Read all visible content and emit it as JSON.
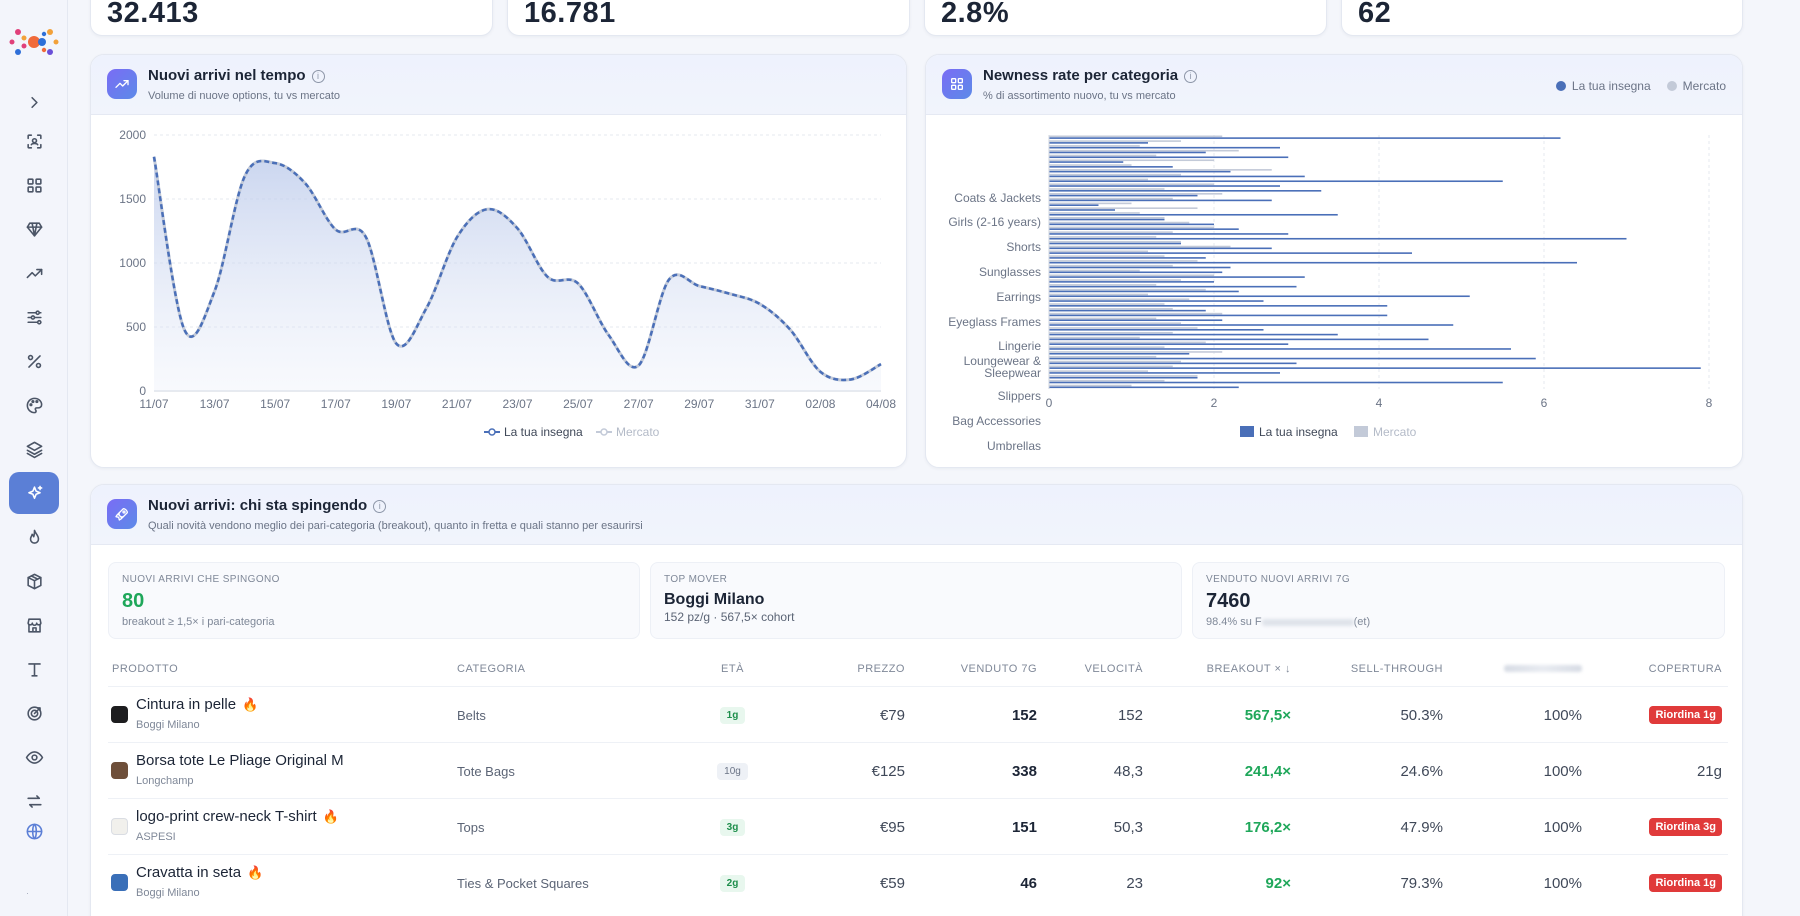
{
  "stats": [
    "32.413",
    "16.781",
    "2.8%",
    "62"
  ],
  "chart1": {
    "title": "Nuovi arrivi nel tempo",
    "subtitle": "Volume di nuove options, tu vs mercato",
    "legend": [
      "La tua insegna",
      "Mercato"
    ]
  },
  "chart2": {
    "title": "Newness rate per categoria",
    "subtitle": "% di assortimento nuovo, tu vs mercato",
    "legend": [
      "La tua insegna",
      "Mercato"
    ]
  },
  "chart_data": [
    {
      "type": "area",
      "title": "Nuovi arrivi nel tempo",
      "x": [
        "11/07",
        "12/07",
        "13/07",
        "14/07",
        "15/07",
        "16/07",
        "17/07",
        "18/07",
        "19/07",
        "20/07",
        "21/07",
        "22/07",
        "23/07",
        "24/07",
        "25/07",
        "26/07",
        "27/07",
        "28/07",
        "29/07",
        "30/07",
        "31/07",
        "01/08",
        "02/08",
        "03/08",
        "04/08"
      ],
      "x_tick_labels": [
        "11/07",
        "13/07",
        "15/07",
        "17/07",
        "19/07",
        "21/07",
        "23/07",
        "25/07",
        "27/07",
        "29/07",
        "31/07",
        "02/08",
        "04/08"
      ],
      "series": [
        {
          "name": "La tua insegna",
          "values": [
            1830,
            480,
            780,
            1680,
            1780,
            1620,
            1260,
            1200,
            370,
            650,
            1200,
            1420,
            1270,
            890,
            840,
            440,
            200,
            870,
            820,
            760,
            680,
            480,
            150,
            90,
            210
          ],
          "color": "#4a6fb8"
        },
        {
          "name": "Mercato",
          "values": [
            1830,
            480,
            780,
            1680,
            1780,
            1620,
            1260,
            1200,
            370,
            650,
            1200,
            1420,
            1270,
            890,
            840,
            440,
            200,
            870,
            820,
            760,
            680,
            480,
            150,
            90,
            210
          ],
          "color": "#c3cad8"
        }
      ],
      "ylim": [
        0,
        2000
      ],
      "y_ticks": [
        0,
        500,
        1000,
        1500,
        2000
      ],
      "grid": true,
      "legend": "bottom"
    },
    {
      "type": "bar",
      "orientation": "horizontal",
      "title": "Newness rate per categoria",
      "tick_labels": [
        "Coats & Jackets",
        "Girls (2-16 years)",
        "Shorts",
        "Sunglasses",
        "Earrings",
        "Eyeglass Frames",
        "Lingerie",
        "Loungewear & Sleepwear",
        "Slippers",
        "Bag Accessories",
        "Umbrellas"
      ],
      "series": [
        {
          "name": "La tua insegna",
          "values": [
            6.2,
            1.2,
            2.8,
            1.9,
            2.9,
            0.9,
            1.5,
            2.2,
            3.1,
            5.5,
            2.8,
            3.3,
            1.8,
            2.7,
            0.6,
            0.8,
            3.5,
            1.4,
            2.0,
            2.3,
            2.9,
            7.0,
            1.6,
            2.7,
            4.4,
            1.9,
            6.4,
            2.2,
            2.1,
            3.1,
            2.0,
            3.0,
            2.3,
            5.1,
            2.6,
            4.1,
            1.9,
            4.1,
            2.1,
            4.9,
            2.6,
            3.5,
            4.6,
            2.9,
            5.6,
            1.7,
            5.9,
            3.0,
            7.9,
            2.8,
            1.8,
            5.5,
            2.3
          ],
          "color": "#4a6fb8"
        },
        {
          "name": "Mercato",
          "values": [
            2.1,
            1.6,
            1.1,
            2.3,
            1.3,
            2.0,
            1.0,
            2.7,
            1.6,
            1.2,
            2.0,
            1.4,
            2.1,
            1.5,
            1.0,
            1.8,
            1.1,
            1.4,
            1.7,
            2.0,
            1.5,
            1.3,
            1.6,
            2.2,
            1.2,
            1.4,
            1.8,
            1.5,
            1.1,
            2.0,
            1.6,
            1.3,
            1.9,
            1.2,
            1.7,
            1.4,
            1.5,
            2.1,
            1.3,
            1.6,
            1.8,
            1.5,
            1.1,
            1.9,
            1.4,
            2.1,
            1.3,
            1.6,
            1.5,
            1.2,
            1.8,
            1.4,
            1.0
          ],
          "color": "#c3cad8"
        }
      ],
      "xlim": [
        0,
        8
      ],
      "x_ticks": [
        0,
        2,
        4,
        6,
        8
      ],
      "grid": true,
      "legend": "bottom"
    }
  ],
  "section": {
    "title": "Nuovi arrivi: chi sta spingendo",
    "subtitle": "Quali novità vendono meglio dei pari-categoria (breakout), quanto in fretta e quali stanno per esaurirsi"
  },
  "kpis": [
    {
      "label": "Nuovi arrivi che spingono",
      "value": "80",
      "sub": "breakout ≥ 1,5× i pari-categoria"
    },
    {
      "label": "Top mover",
      "value": "Boggi Milano",
      "sub": "152 pz/g · 567,5× cohort"
    },
    {
      "label": "Venduto nuovi arrivi 7g",
      "value": "7460",
      "sub_prefix": "98.4% su F",
      "sub_suffix": "(et)"
    }
  ],
  "table": {
    "headers": [
      "Prodotto",
      "Categoria",
      "Età",
      "Prezzo",
      "Venduto 7g",
      "Velocità",
      "Breakout × ↓",
      "Sell-through",
      "",
      "Copertura"
    ],
    "rows": [
      {
        "name": "Cintura in pelle",
        "hot": "🔥",
        "brand": "Boggi Milano",
        "color": "#1d1d1f",
        "category": "Belts",
        "age": "1g",
        "age_new": true,
        "price": "€79",
        "sold": "152",
        "velocity": "152",
        "breakout": "567,5×",
        "sell_through": "50.3%",
        "pct": "100%",
        "coverage": "Riordina 1g",
        "coverage_alert": true
      },
      {
        "name": "Borsa tote Le Pliage Original M",
        "hot": "",
        "brand": "Longchamp",
        "color": "#6e4f3a",
        "category": "Tote Bags",
        "age": "10g",
        "age_new": false,
        "price": "€125",
        "sold": "338",
        "velocity": "48,3",
        "breakout": "241,4×",
        "sell_through": "24.6%",
        "pct": "100%",
        "coverage": "21g",
        "coverage_alert": false
      },
      {
        "name": "logo-print crew-neck T-shirt",
        "hot": "🔥",
        "brand": "ASPESI",
        "color": "#f1f0ec",
        "category": "Tops",
        "age": "3g",
        "age_new": true,
        "price": "€95",
        "sold": "151",
        "velocity": "50,3",
        "breakout": "176,2×",
        "sell_through": "47.9%",
        "pct": "100%",
        "coverage": "Riordina 3g",
        "coverage_alert": true
      },
      {
        "name": "Cravatta in seta",
        "hot": "🔥",
        "brand": "Boggi Milano",
        "color": "#3a6fb8",
        "category": "Ties & Pocket Squares",
        "age": "2g",
        "age_new": true,
        "price": "€59",
        "sold": "46",
        "velocity": "23",
        "breakout": "92×",
        "sell_through": "79.3%",
        "pct": "100%",
        "coverage": "Riordina 1g",
        "coverage_alert": true
      }
    ]
  },
  "colors": {
    "accent": "#5b7fd6",
    "series_you": "#4a6fb8",
    "series_market": "#c3cad8",
    "positive": "#1fa75a",
    "alert": "#e03a3a"
  },
  "nav_icons": [
    "chevron-right-icon",
    "scan-icon",
    "grid-icon",
    "diamond-icon",
    "trend-up-icon",
    "sliders-icon",
    "percent-icon",
    "palette-icon",
    "layers-icon",
    "sparkles-icon",
    "flame-icon",
    "box-icon",
    "store-icon",
    "text-icon",
    "target-icon",
    "eye-icon",
    "swap-icon",
    "globe-icon"
  ]
}
